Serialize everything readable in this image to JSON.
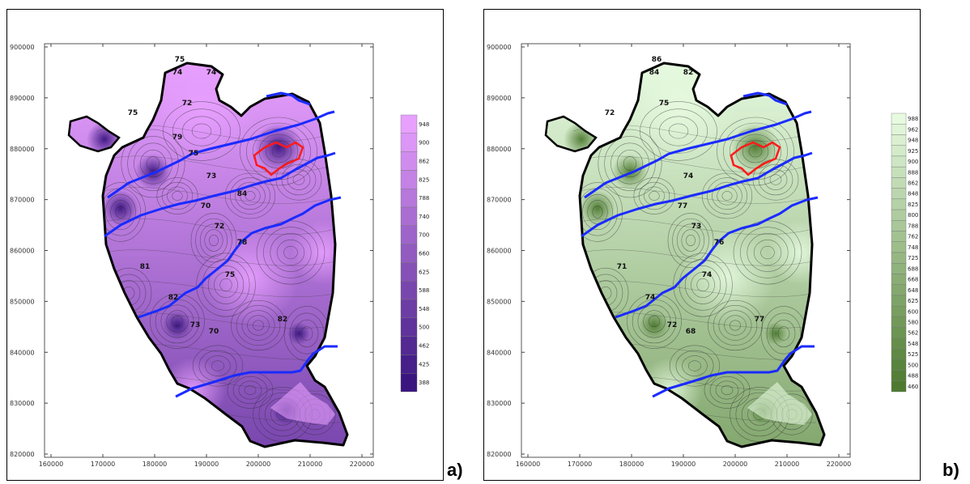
{
  "panels": [
    {
      "id": "a",
      "label": "a)",
      "palette": [
        "#3a1580",
        "#e8a0ff"
      ],
      "legend_values": [
        "388",
        "425",
        "462",
        "500",
        "548",
        "588",
        "625",
        "660",
        "700",
        "740",
        "788",
        "825",
        "862",
        "900",
        "948"
      ],
      "contour_labels": [
        "75",
        "74",
        "74",
        "72",
        "75",
        "73",
        "70",
        "72",
        "75",
        "73",
        "81",
        "82",
        "70",
        "78",
        "82",
        "84",
        "79",
        "75"
      ]
    },
    {
      "id": "b",
      "label": "b)",
      "palette": [
        "#4d7a30",
        "#e6fadf"
      ],
      "legend_values": [
        "460",
        "488",
        "500",
        "525",
        "548",
        "562",
        "580",
        "600",
        "625",
        "648",
        "668",
        "688",
        "725",
        "748",
        "762",
        "788",
        "800",
        "825",
        "848",
        "862",
        "888",
        "900",
        "925",
        "948",
        "962",
        "988"
      ],
      "contour_labels": [
        "86",
        "84",
        "82",
        "75",
        "72",
        "74",
        "77",
        "73",
        "74",
        "72",
        "71",
        "74",
        "68",
        "76",
        "77"
      ]
    }
  ],
  "axes": {
    "x_ticks": [
      "160000",
      "170000",
      "180000",
      "190000",
      "200000",
      "210000",
      "220000"
    ],
    "y_ticks": [
      "900000",
      "890000",
      "880000",
      "870000",
      "860000",
      "850000",
      "840000",
      "830000",
      "820000"
    ]
  },
  "colors": {
    "river": "#1a2bff",
    "highlight": "#ff1a1a",
    "outline": "#000000"
  }
}
